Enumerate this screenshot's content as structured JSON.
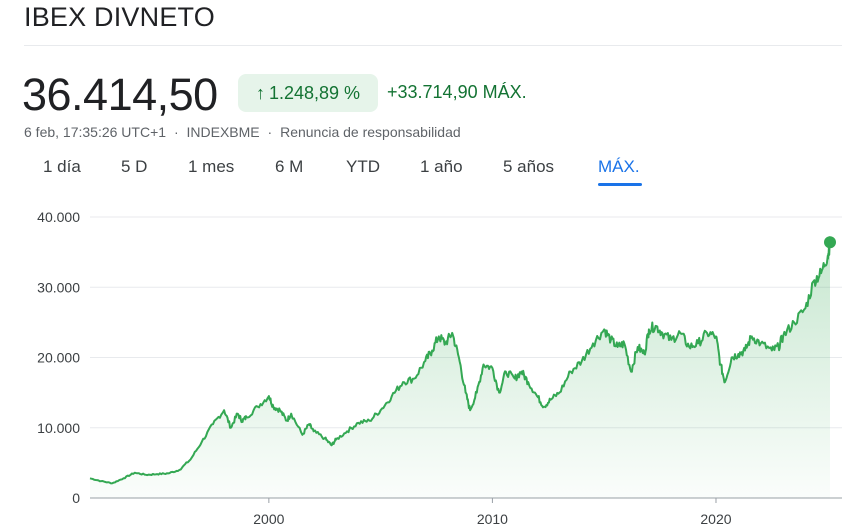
{
  "header": {
    "title": "IBEX DIVNETO"
  },
  "quote": {
    "price": "36.414,50",
    "percent_change": "1.248,89 %",
    "absolute_change": "+33.714,90",
    "period_label": "MÁX.",
    "timestamp": "6 feb, 17:35:26 UTC+1",
    "exchange": "INDEXBME",
    "disclaimer": "Renuncia de responsabilidad",
    "separator": "·",
    "up_arrow": "↑"
  },
  "tabs": [
    {
      "label": "1 día"
    },
    {
      "label": "5 D"
    },
    {
      "label": "1 mes"
    },
    {
      "label": "6 M"
    },
    {
      "label": "YTD"
    },
    {
      "label": "1 año"
    },
    {
      "label": "5 años"
    },
    {
      "label": "MÁX.",
      "active": true
    }
  ],
  "colors": {
    "line": "#34a853",
    "positive_text": "#137333",
    "badge_bg": "#e6f4ea",
    "active_tab": "#1a73e8"
  },
  "chart_data": {
    "type": "area",
    "ylim": [
      0,
      40000
    ],
    "yticks": [
      "40.000",
      "30.000",
      "20.000",
      "10.000",
      "0"
    ],
    "ytick_values": [
      40000,
      30000,
      20000,
      10000,
      0
    ],
    "xticks": [
      "2000",
      "2010",
      "2020"
    ],
    "xtick_values": [
      2000,
      2010,
      2020
    ],
    "xlim": [
      1992.0,
      2025.1
    ],
    "grid": true,
    "series": [
      {
        "x": [
          1992.0,
          1992.5,
          1993.0,
          1993.5,
          1994.0,
          1994.5,
          1995.0,
          1995.5,
          1996.0,
          1996.5,
          1997.0,
          1997.5,
          1998.0,
          1998.3,
          1998.6,
          1998.8,
          1999.0,
          1999.5,
          2000.0,
          2000.2,
          2000.5,
          2000.8,
          2001.0,
          2001.5,
          2001.8,
          2002.0,
          2002.5,
          2002.8,
          2003.0,
          2003.5,
          2004.0,
          2004.5,
          2005.0,
          2005.5,
          2006.0,
          2006.5,
          2007.0,
          2007.3,
          2007.6,
          2007.9,
          2008.2,
          2008.5,
          2008.8,
          2009.0,
          2009.3,
          2009.6,
          2010.0,
          2010.3,
          2010.6,
          2011.0,
          2011.3,
          2011.6,
          2012.0,
          2012.3,
          2012.6,
          2013.0,
          2013.5,
          2014.0,
          2014.5,
          2015.0,
          2015.3,
          2015.6,
          2015.9,
          2016.2,
          2016.5,
          2016.8,
          2017.0,
          2017.3,
          2017.6,
          2018.0,
          2018.4,
          2018.8,
          2019.2,
          2019.6,
          2020.0,
          2020.2,
          2020.4,
          2020.7,
          2021.0,
          2021.3,
          2021.6,
          2022.0,
          2022.5,
          2022.8,
          2023.0,
          2023.5,
          2024.0,
          2024.4,
          2024.7,
          2025.0,
          2025.1
        ],
        "values": [
          2800,
          2400,
          2100,
          2800,
          3600,
          3300,
          3400,
          3500,
          4000,
          5500,
          8000,
          10500,
          12500,
          10000,
          12000,
          11000,
          11500,
          13000,
          14500,
          13000,
          12500,
          11000,
          12000,
          9000,
          10500,
          9500,
          8500,
          7500,
          8300,
          9500,
          10700,
          11000,
          12500,
          14500,
          16500,
          17000,
          19500,
          21000,
          23000,
          22000,
          23500,
          20000,
          15000,
          12500,
          15000,
          19000,
          18500,
          15000,
          18000,
          17000,
          18000,
          16500,
          14500,
          13000,
          14000,
          15000,
          18000,
          19500,
          22000,
          24000,
          22500,
          21500,
          22000,
          18000,
          21500,
          20500,
          24000,
          24500,
          23500,
          22500,
          23500,
          21500,
          22000,
          23500,
          23000,
          19000,
          16500,
          20000,
          20500,
          21000,
          23000,
          22000,
          21000,
          21500,
          23000,
          25000,
          27000,
          31000,
          32000,
          34500,
          36400
        ]
      }
    ]
  }
}
